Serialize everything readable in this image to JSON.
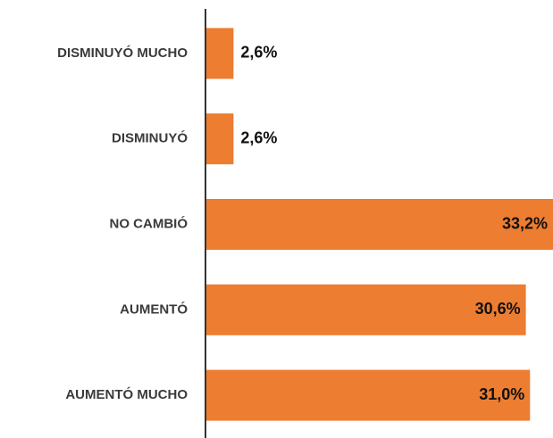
{
  "chart_data": {
    "type": "bar",
    "orientation": "horizontal",
    "categories": [
      "DISMINUYÓ MUCHO",
      "DISMINUYÓ",
      "NO CAMBIÓ",
      "AUMENTÓ",
      "AUMENTÓ MUCHO"
    ],
    "values": [
      2.6,
      2.6,
      33.2,
      30.6,
      31.0
    ],
    "value_labels": [
      "2,6%",
      "2,6%",
      "33,2%",
      "30,6%",
      "31,0%"
    ],
    "color": "#ed7d31"
  }
}
